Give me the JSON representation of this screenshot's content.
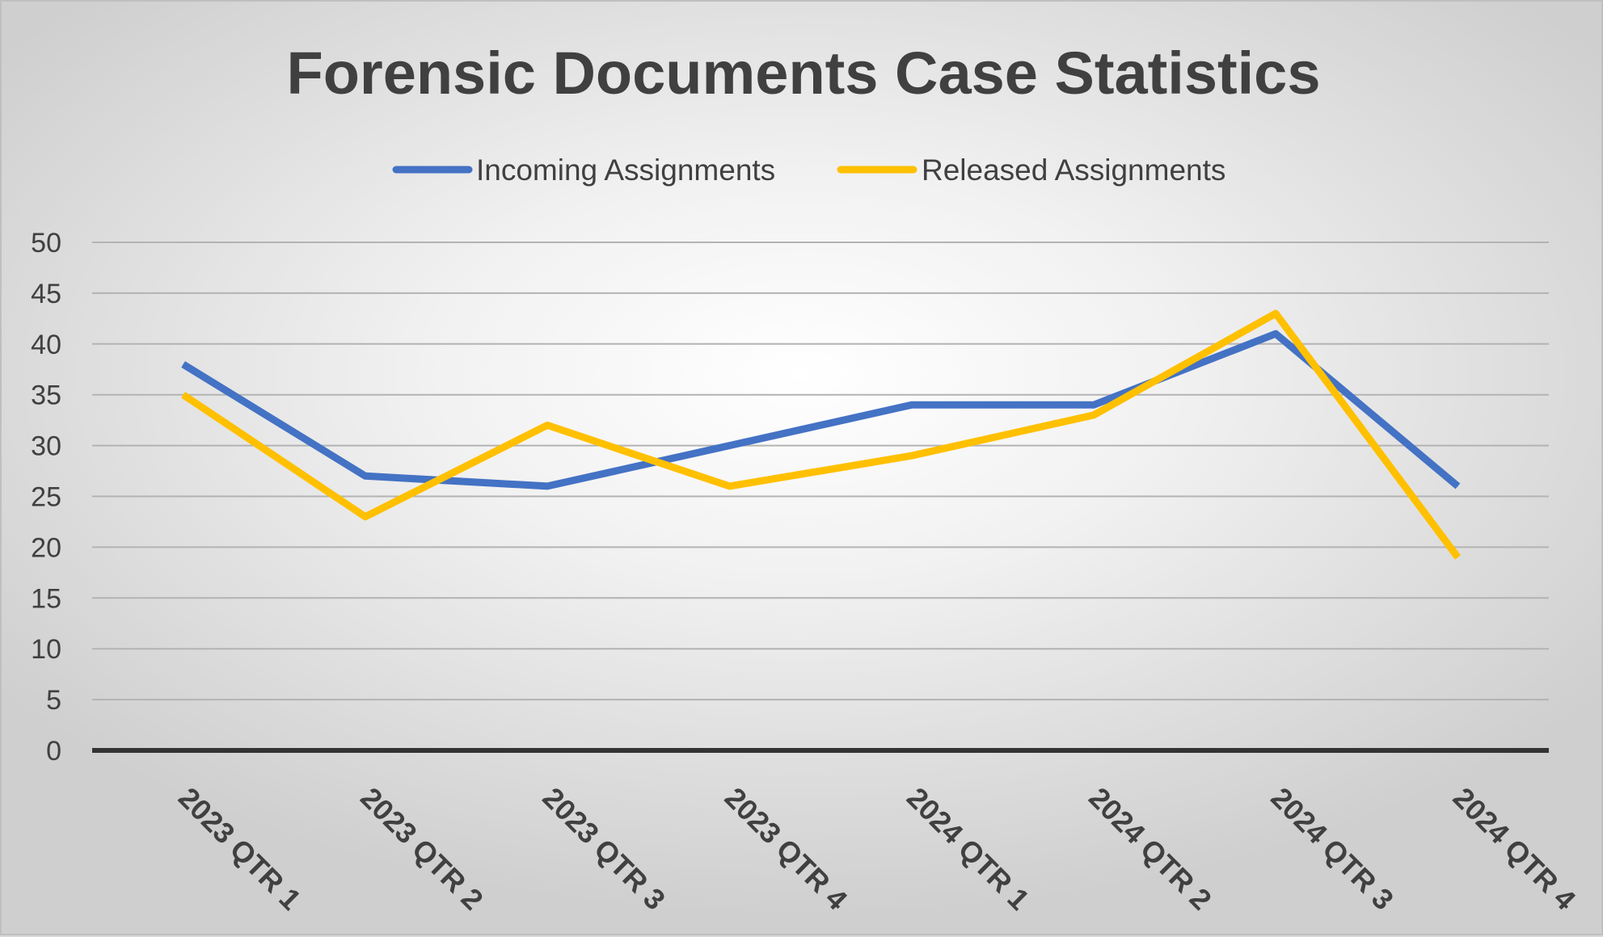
{
  "chart_data": {
    "type": "line",
    "title": "Forensic Documents Case Statistics",
    "xlabel": "",
    "ylabel": "",
    "categories": [
      "2023 QTR 1",
      "2023 QTR 2",
      "2023 QTR 3",
      "2023 QTR 4",
      "2024 QTR 1",
      "2024 QTR 2",
      "2024 QTR 3",
      "2024 QTR 4"
    ],
    "series": [
      {
        "name": "Incoming Assignments",
        "color": "#4472c4",
        "values": [
          38,
          27,
          26,
          30,
          34,
          34,
          41,
          26
        ]
      },
      {
        "name": "Released Assignments",
        "color": "#ffc000",
        "values": [
          35,
          23,
          32,
          26,
          29,
          33,
          43,
          19
        ]
      }
    ],
    "ylim": [
      0,
      50
    ],
    "yticks": [
      0,
      5,
      10,
      15,
      20,
      25,
      30,
      35,
      40,
      45,
      50
    ],
    "grid": true,
    "legend_position": "top"
  }
}
